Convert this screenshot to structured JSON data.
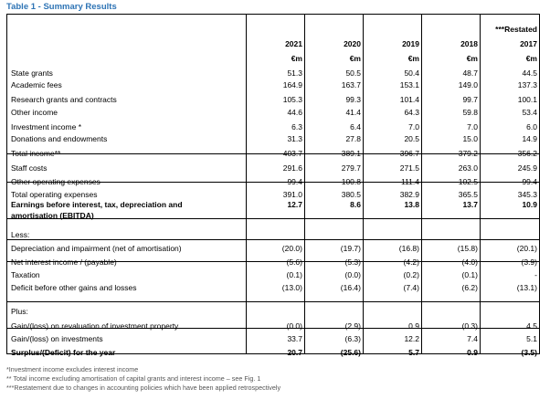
{
  "title": "Table 1 - Summary Results",
  "header": {
    "years": [
      "2021",
      "2020",
      "2019",
      "2018",
      "***Restated"
    ],
    "year2017": "2017",
    "unit": "€m"
  },
  "rows": [
    {
      "label": "State grants",
      "values": [
        "51.3",
        "50.5",
        "50.4",
        "48.7",
        "44.5"
      ],
      "bold": false
    },
    {
      "label": "Academic fees",
      "values": [
        "164.9",
        "163.7",
        "153.1",
        "149.0",
        "137.3"
      ],
      "bold": false
    },
    {
      "label": "Research grants and contracts",
      "values": [
        "105.3",
        "99.3",
        "101.4",
        "99.7",
        "100.1"
      ],
      "bold": false
    },
    {
      "label": "Other income",
      "values": [
        "44.6",
        "41.4",
        "64.3",
        "59.8",
        "53.4"
      ],
      "bold": false
    },
    {
      "label": "Investment income *",
      "values": [
        "6.3",
        "6.4",
        "7.0",
        "7.0",
        "6.0"
      ],
      "bold": false
    },
    {
      "label": "Donations and endowments",
      "values": [
        "31.3",
        "27.8",
        "20.5",
        "15.0",
        "14.9"
      ],
      "bold": false
    },
    {
      "label": "Total income**",
      "values": [
        "403.7",
        "389.1",
        "396.7",
        "379.2",
        "356.2"
      ],
      "bold": false
    },
    {
      "label": "Staff costs",
      "values": [
        "291.6",
        "279.7",
        "271.5",
        "263.0",
        "245.9"
      ],
      "bold": false
    },
    {
      "label": "Other operating expenses",
      "values": [
        "99.4",
        "100.8",
        "111.4",
        "102.5",
        "99.4"
      ],
      "bold": false
    },
    {
      "label": "Total operating expenses",
      "values": [
        "391.0",
        "380.5",
        "382.9",
        "365.5",
        "345.3"
      ],
      "bold": false
    },
    {
      "label": "Earnings before interest, tax, depreciation and",
      "label2": "amortisation (EBITDA)",
      "values": [
        "12.7",
        "8.6",
        "13.8",
        "13.7",
        "10.9"
      ],
      "bold": true
    },
    {
      "label": "Less:",
      "values": [
        "",
        "",
        "",
        "",
        ""
      ],
      "bold": false
    },
    {
      "label": "Depreciation and impairment (net of amortisation)",
      "values": [
        "(20.0)",
        "(19.7)",
        "(16.8)",
        "(15.8)",
        "(20.1)"
      ],
      "bold": false
    },
    {
      "label": "Net interest income / (payable)",
      "values": [
        "(5.6)",
        "(5.3)",
        "(4.2)",
        "(4.0)",
        "(3.9)"
      ],
      "bold": false
    },
    {
      "label": "Taxation",
      "values": [
        "(0.1)",
        "(0.0)",
        "(0.2)",
        "(0.1)",
        "-"
      ],
      "bold": false
    },
    {
      "label": "Deficit before other gains and losses",
      "values": [
        "(13.0)",
        "(16.4)",
        "(7.4)",
        "(6.2)",
        "(13.1)"
      ],
      "bold": false
    },
    {
      "label": "Plus:",
      "values": [
        "",
        "",
        "",
        "",
        ""
      ],
      "bold": false
    },
    {
      "label": "Gain/(loss) on revaluation of investment property",
      "values": [
        "(0.0)",
        "(2.9)",
        "0.9",
        "(0.3)",
        "4.5"
      ],
      "bold": false
    },
    {
      "label": "Gain/(loss) on investments",
      "values": [
        "33.7",
        "(6.3)",
        "12.2",
        "7.4",
        "5.1"
      ],
      "bold": false
    },
    {
      "label": "Surplus/(Deficit) for the year",
      "values": [
        "20.7",
        "(25.6)",
        "5.7",
        "0.9",
        "(3.5)"
      ],
      "bold": true
    }
  ],
  "footnotes": [
    "*Investment income excludes interest income",
    "** Total income excluding amortisation of capital grants and interest income – see Fig. 1",
    "***Restatement due to changes in accounting policies which have been applied retrospectively"
  ]
}
